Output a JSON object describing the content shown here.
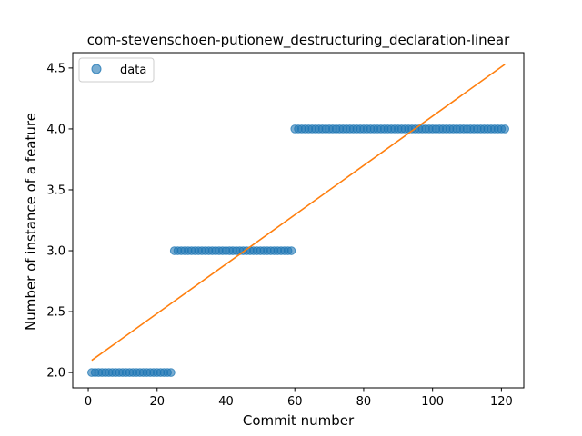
{
  "chart_data": {
    "type": "scatter",
    "title": "com-stevenschoen-putionew_destructuring_declaration-linear",
    "xlabel": "Commit number",
    "ylabel": "Number of instance of a feature",
    "xlim": [
      -4.5,
      126.5
    ],
    "ylim": [
      1.874,
      4.626
    ],
    "x_ticks": [
      0,
      20,
      40,
      60,
      80,
      100,
      120
    ],
    "y_ticks": [
      2.0,
      2.5,
      3.0,
      3.5,
      4.0,
      4.5
    ],
    "x_tick_labels": [
      "0",
      "20",
      "40",
      "60",
      "80",
      "100",
      "120"
    ],
    "y_tick_labels": [
      "2.0",
      "2.5",
      "3.0",
      "3.5",
      "4.0",
      "4.5"
    ],
    "grid": false,
    "legend": {
      "position": "top-left",
      "entries": [
        "data"
      ]
    },
    "series": [
      {
        "name": "data",
        "kind": "scatter",
        "color": "#1f77b4",
        "segments": [
          {
            "x_start": 1,
            "x_end": 24,
            "y": 2
          },
          {
            "x_start": 25,
            "x_end": 59,
            "y": 3
          },
          {
            "x_start": 60,
            "x_end": 121,
            "y": 4
          }
        ]
      },
      {
        "kind": "line",
        "color": "#ff7f0e",
        "x": [
          1,
          121
        ],
        "y": [
          2.1,
          4.53
        ]
      }
    ]
  }
}
